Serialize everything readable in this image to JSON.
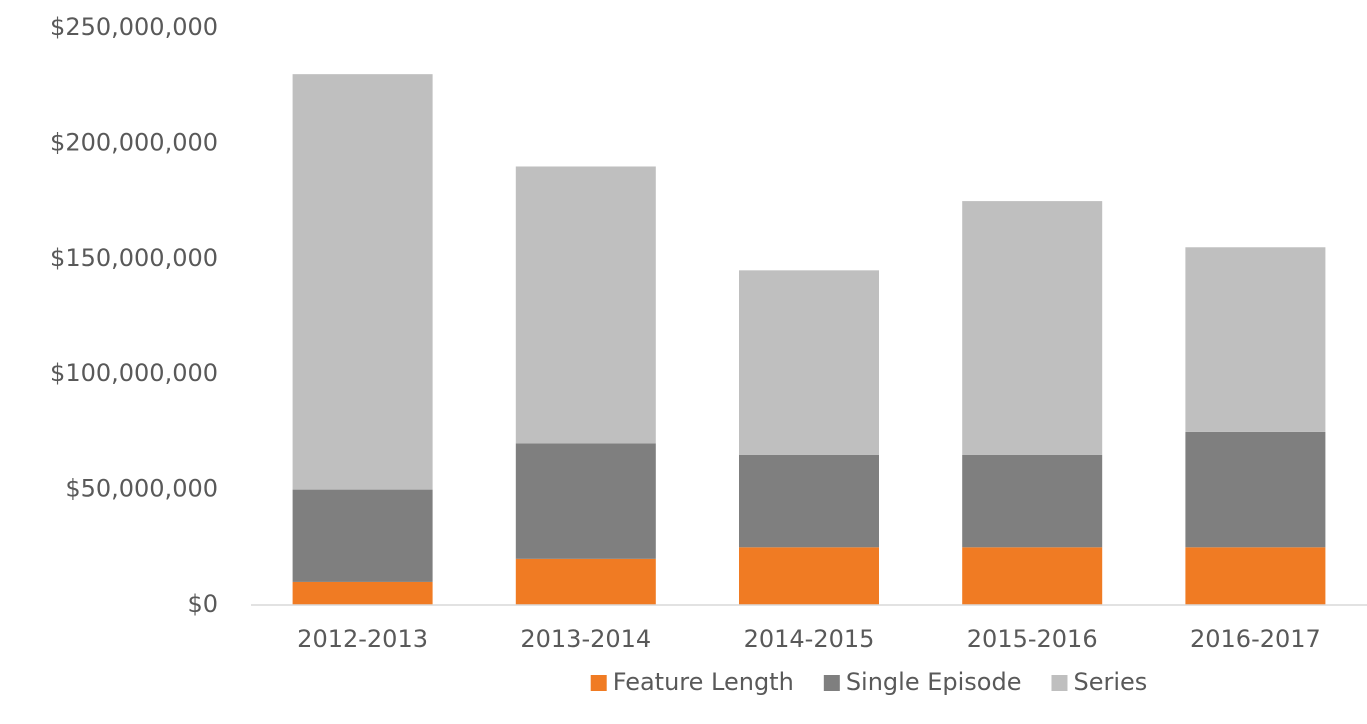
{
  "chart_data": {
    "type": "stacked-bar",
    "categories": [
      "2012-2013",
      "2013-2014",
      "2014-2015",
      "2015-2016",
      "2016-2017"
    ],
    "series": [
      {
        "name": "Feature Length",
        "color": "#f07b23",
        "values": [
          10000000,
          20000000,
          25000000,
          25000000,
          25000000
        ]
      },
      {
        "name": "Single Episode",
        "color": "#7f7f7f",
        "values": [
          40000000,
          50000000,
          40000000,
          40000000,
          50000000
        ]
      },
      {
        "name": "Series",
        "color": "#bfbfbf",
        "values": [
          180000000,
          120000000,
          80000000,
          110000000,
          80000000
        ]
      }
    ],
    "ylim": [
      0,
      250000000
    ],
    "yticks": [
      {
        "value": 0,
        "label": "$0"
      },
      {
        "value": 50000000,
        "label": "$50,000,000"
      },
      {
        "value": 100000000,
        "label": "$100,000,000"
      },
      {
        "value": 150000000,
        "label": "$150,000,000"
      },
      {
        "value": 200000000,
        "label": "$200,000,000"
      },
      {
        "value": 250000000,
        "label": "$250,000,000"
      }
    ],
    "grid": false,
    "legend": "bottom"
  }
}
